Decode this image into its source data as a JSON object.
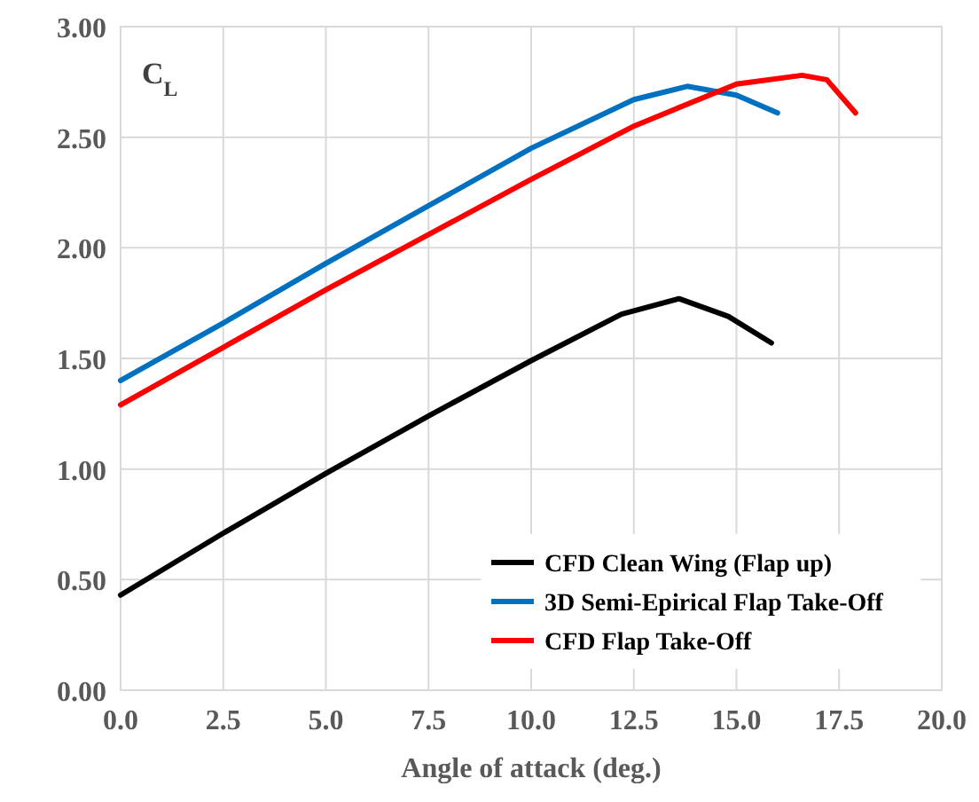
{
  "chart_data": {
    "type": "line",
    "ylabel": "C$_{L}$",
    "xlabel": "Angle of attack (deg.)",
    "xlim": [
      0,
      20
    ],
    "xticks": [
      {
        "value": 0,
        "label": "0.0"
      },
      {
        "value": 2.5,
        "label": "2.5"
      },
      {
        "value": 5,
        "label": "5.0"
      },
      {
        "value": 7.5,
        "label": "7.5"
      },
      {
        "value": 10,
        "label": "10.0"
      },
      {
        "value": 12.5,
        "label": "12.5"
      },
      {
        "value": 15,
        "label": "15.0"
      },
      {
        "value": 17.5,
        "label": "17.5"
      },
      {
        "value": 20,
        "label": "20.0"
      }
    ],
    "ylim": [
      0,
      3
    ],
    "yticks": [
      {
        "value": 0,
        "label": "0.00"
      },
      {
        "value": 0.5,
        "label": "0.50"
      },
      {
        "value": 1,
        "label": "1.00"
      },
      {
        "value": 1.5,
        "label": "1.50"
      },
      {
        "value": 2,
        "label": "2.00"
      },
      {
        "value": 2.5,
        "label": "2.50"
      },
      {
        "value": 3,
        "label": "3.00"
      }
    ],
    "grid": true,
    "legend": "bottom right",
    "marker": "none",
    "line_style": "solid",
    "series": [
      {
        "name": "CFD Clean Wing (Flap up)",
        "color": "#000000",
        "x": [
          0,
          2.5,
          5,
          7.5,
          10,
          12.2,
          13.6,
          14.8,
          15.85
        ],
        "values": [
          0.43,
          0.71,
          0.98,
          1.24,
          1.49,
          1.7,
          1.77,
          1.69,
          1.57
        ]
      },
      {
        "name": "3D Semi-Epirical Flap Take-Off",
        "color": "#0070c0",
        "x": [
          0,
          2.5,
          5,
          7.5,
          10,
          12.5,
          13.8,
          15,
          16
        ],
        "values": [
          1.4,
          1.66,
          1.93,
          2.19,
          2.45,
          2.67,
          2.73,
          2.69,
          2.61
        ]
      },
      {
        "name": "CFD Flap Take-Off",
        "color": "#ff0000",
        "x": [
          0,
          2.5,
          5,
          7.5,
          10,
          12.5,
          15,
          16.6,
          17.2,
          17.9
        ],
        "values": [
          1.29,
          1.55,
          1.81,
          2.06,
          2.31,
          2.55,
          2.74,
          2.78,
          2.76,
          2.61
        ]
      }
    ]
  }
}
